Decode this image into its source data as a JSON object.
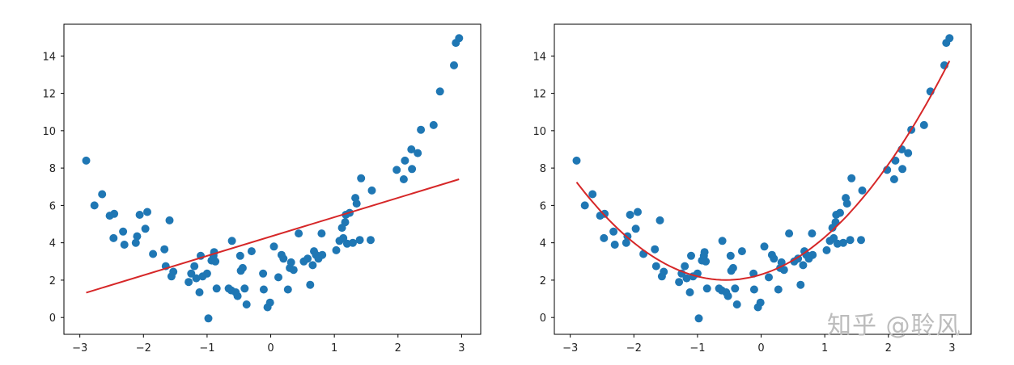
{
  "watermark": "知乎 @聆风",
  "style": {
    "point_color": "#1f77b4",
    "line_color": "#d62728",
    "axis_color": "#000000",
    "background": "#ffffff"
  },
  "chart_data": [
    {
      "type": "scatter",
      "title": "",
      "xlabel": "",
      "ylabel": "",
      "xlim": [
        -3.25,
        3.3
      ],
      "ylim": [
        -0.9,
        15.7
      ],
      "xticks": [
        -3,
        -2,
        -1,
        0,
        1,
        2,
        3
      ],
      "yticks": [
        0,
        2,
        4,
        6,
        8,
        10,
        12,
        14
      ],
      "grid": false,
      "legend": "none",
      "series": [
        {
          "kind": "scatter",
          "points": [
            [
              -2.9,
              8.4
            ],
            [
              -2.77,
              6.0
            ],
            [
              -2.65,
              6.6
            ],
            [
              -2.53,
              5.45
            ],
            [
              -2.46,
              5.55
            ],
            [
              -2.47,
              4.25
            ],
            [
              -2.32,
              4.6
            ],
            [
              -2.3,
              3.9
            ],
            [
              -2.12,
              4.0
            ],
            [
              -2.1,
              4.35
            ],
            [
              -2.06,
              5.5
            ],
            [
              -1.97,
              4.75
            ],
            [
              -1.94,
              5.65
            ],
            [
              -1.85,
              3.4
            ],
            [
              -1.67,
              3.65
            ],
            [
              -1.65,
              2.75
            ],
            [
              -1.59,
              5.2
            ],
            [
              -1.56,
              2.2
            ],
            [
              -1.53,
              2.45
            ],
            [
              -1.29,
              1.9
            ],
            [
              -1.25,
              2.35
            ],
            [
              -1.2,
              2.75
            ],
            [
              -1.17,
              2.1
            ],
            [
              -1.12,
              1.35
            ],
            [
              -1.1,
              3.3
            ],
            [
              -1.07,
              2.2
            ],
            [
              -1.0,
              2.35
            ],
            [
              -0.98,
              -0.05
            ],
            [
              -0.93,
              3.05
            ],
            [
              -0.9,
              3.3
            ],
            [
              -0.89,
              3.5
            ],
            [
              -0.87,
              3.0
            ],
            [
              -0.85,
              1.55
            ],
            [
              -0.66,
              1.55
            ],
            [
              -0.62,
              1.45
            ],
            [
              -0.61,
              4.1
            ],
            [
              -0.55,
              1.35
            ],
            [
              -0.52,
              1.15
            ],
            [
              -0.48,
              3.3
            ],
            [
              -0.47,
              2.5
            ],
            [
              -0.44,
              2.65
            ],
            [
              -0.41,
              1.55
            ],
            [
              -0.38,
              0.7
            ],
            [
              -0.3,
              3.55
            ],
            [
              -0.12,
              2.35
            ],
            [
              -0.11,
              1.5
            ],
            [
              -0.05,
              0.55
            ],
            [
              -0.01,
              0.8
            ],
            [
              0.05,
              3.8
            ],
            [
              0.12,
              2.15
            ],
            [
              0.17,
              3.35
            ],
            [
              0.2,
              3.15
            ],
            [
              0.27,
              1.5
            ],
            [
              0.3,
              2.65
            ],
            [
              0.32,
              2.95
            ],
            [
              0.36,
              2.55
            ],
            [
              0.44,
              4.5
            ],
            [
              0.52,
              3.0
            ],
            [
              0.58,
              3.15
            ],
            [
              0.62,
              1.75
            ],
            [
              0.66,
              2.8
            ],
            [
              0.68,
              3.55
            ],
            [
              0.71,
              3.35
            ],
            [
              0.75,
              3.15
            ],
            [
              0.8,
              4.5
            ],
            [
              0.81,
              3.35
            ],
            [
              1.03,
              3.6
            ],
            [
              1.08,
              4.1
            ],
            [
              1.12,
              4.8
            ],
            [
              1.14,
              4.25
            ],
            [
              1.17,
              5.1
            ],
            [
              1.18,
              5.5
            ],
            [
              1.2,
              3.95
            ],
            [
              1.24,
              5.6
            ],
            [
              1.29,
              4.0
            ],
            [
              1.33,
              6.4
            ],
            [
              1.35,
              6.1
            ],
            [
              1.4,
              4.15
            ],
            [
              1.42,
              7.45
            ],
            [
              1.57,
              4.15
            ],
            [
              1.59,
              6.8
            ],
            [
              1.98,
              7.9
            ],
            [
              2.09,
              7.4
            ],
            [
              2.11,
              8.4
            ],
            [
              2.21,
              9.0
            ],
            [
              2.22,
              7.95
            ],
            [
              2.31,
              8.8
            ],
            [
              2.36,
              10.05
            ],
            [
              2.56,
              10.3
            ],
            [
              2.66,
              12.1
            ],
            [
              2.88,
              13.5
            ],
            [
              2.91,
              14.7
            ],
            [
              2.96,
              14.95
            ]
          ]
        },
        {
          "kind": "line",
          "model": "linear",
          "x": [
            -2.9,
            2.96
          ],
          "y": [
            1.33,
            7.4
          ]
        }
      ]
    },
    {
      "type": "scatter",
      "title": "",
      "xlabel": "",
      "ylabel": "",
      "xlim": [
        -3.25,
        3.3
      ],
      "ylim": [
        -0.9,
        15.7
      ],
      "xticks": [
        -3,
        -2,
        -1,
        0,
        1,
        2,
        3
      ],
      "yticks": [
        0,
        2,
        4,
        6,
        8,
        10,
        12,
        14
      ],
      "grid": false,
      "legend": "none",
      "series": [
        {
          "kind": "scatter",
          "points": "same as chart 1"
        },
        {
          "kind": "line",
          "model": "quadratic",
          "coefficients": {
            "a": 0.95,
            "b": 1.05,
            "c": 2.3
          },
          "x_range": [
            -2.9,
            2.96
          ]
        }
      ]
    }
  ]
}
